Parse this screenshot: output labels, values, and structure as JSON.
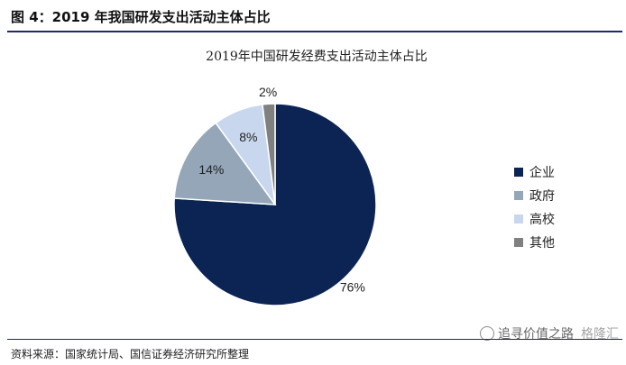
{
  "figure": {
    "title": "图 4：2019 年我国研发支出活动主体占比",
    "source": "资料来源：国家统计局、国信证券经济研究所整理"
  },
  "watermark": {
    "text": "追寻价值之路",
    "brand": "格隆汇"
  },
  "colors": {
    "header_rule": "#1f2a66"
  },
  "chart_data": {
    "type": "pie",
    "title": "2019年中国研发经费支出活动主体占比",
    "categories": [
      "企业",
      "政府",
      "高校",
      "其他"
    ],
    "values": [
      76,
      14,
      8,
      2
    ],
    "labels": [
      "76%",
      "14%",
      "8%",
      "2%"
    ],
    "colors": [
      "#0b2454",
      "#94a6b8",
      "#c8d7ee",
      "#808080"
    ],
    "start_angle_deg": 0,
    "direction": "clockwise",
    "legend_position": "right"
  }
}
